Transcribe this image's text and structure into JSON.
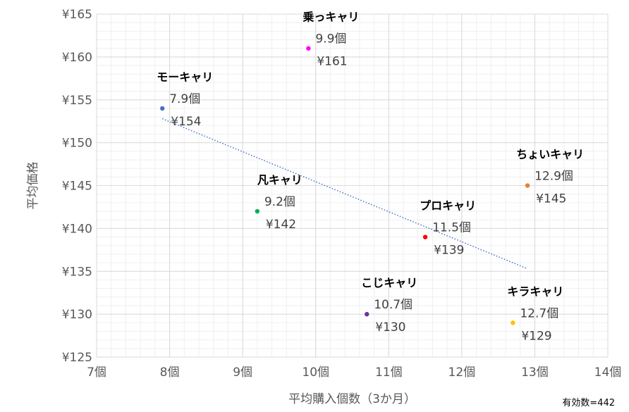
{
  "chart_data": {
    "type": "scatter",
    "xlabel": "平均購入個数（3か月）",
    "ylabel": "平均価格",
    "xlim": [
      7,
      14
    ],
    "ylim": [
      125,
      165
    ],
    "x_ticks": [
      "7個",
      "8個",
      "9個",
      "10個",
      "11個",
      "12個",
      "13個",
      "14個"
    ],
    "y_ticks": [
      "¥125",
      "¥130",
      "¥135",
      "¥140",
      "¥145",
      "¥150",
      "¥155",
      "¥160",
      "¥165"
    ],
    "grid": true,
    "trendline": {
      "type": "linear",
      "x_range": [
        7.9,
        12.9
      ],
      "y_range": [
        152.8,
        135.3
      ],
      "style": "dotted",
      "color": "#4472c4"
    },
    "points": [
      {
        "name": "モーキャリ",
        "x": 7.9,
        "y": 154,
        "x_label": "7.9個",
        "y_label": "¥154",
        "color": "#4472c4"
      },
      {
        "name": "乗っキャリ",
        "x": 9.9,
        "y": 161,
        "x_label": "9.9個",
        "y_label": "¥161",
        "color": "#ff00ff"
      },
      {
        "name": "凡キャリ",
        "x": 9.2,
        "y": 142,
        "x_label": "9.2個",
        "y_label": "¥142",
        "color": "#00b050"
      },
      {
        "name": "プロキャリ",
        "x": 11.5,
        "y": 139,
        "x_label": "11.5個",
        "y_label": "¥139",
        "color": "#ff0000"
      },
      {
        "name": "ちょいキャリ",
        "x": 12.9,
        "y": 145,
        "x_label": "12.9個",
        "y_label": "¥145",
        "color": "#ed7d31"
      },
      {
        "name": "こじキャリ",
        "x": 10.7,
        "y": 130,
        "x_label": "10.7個",
        "y_label": "¥130",
        "color": "#7030a0"
      },
      {
        "name": "キラキャリ",
        "x": 12.7,
        "y": 129,
        "x_label": "12.7個",
        "y_label": "¥129",
        "color": "#ffc000"
      }
    ],
    "note": "有効数=442"
  }
}
